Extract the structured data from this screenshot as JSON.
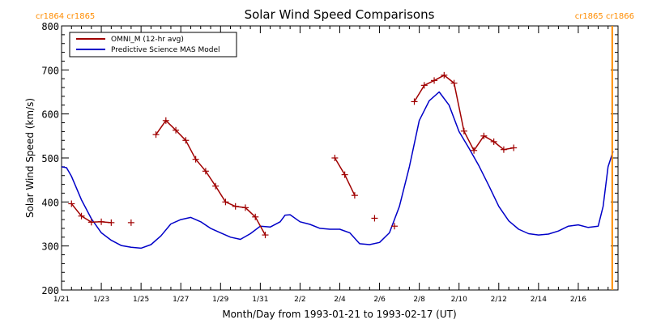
{
  "chart_data": {
    "type": "line",
    "title": "Solar Wind Speed Comparisons",
    "xlabel": "Month/Day from 1993-01-21 to 1993-02-17 (UT)",
    "ylabel": "Solar Wind Speed (km/s)",
    "xlim": [
      "1993-01-21",
      "1993-02-18"
    ],
    "ylim": [
      200,
      800
    ],
    "x_tick_labels": [
      "1/21",
      "1/23",
      "1/25",
      "1/27",
      "1/29",
      "1/31",
      "2/2",
      "2/4",
      "2/6",
      "2/8",
      "2/10",
      "2/12",
      "2/14",
      "2/16"
    ],
    "y_tick_labels": [
      "200",
      "300",
      "400",
      "500",
      "600",
      "700",
      "800"
    ],
    "legend_position": "top-left",
    "carrington_labels": {
      "top_left": "cr1864 cr1865",
      "top_right": "cr1865 cr1866",
      "color": "#ff8c00"
    },
    "boundary_marker": {
      "x": "1993-02-17 17:00",
      "color": "#ff8c00"
    },
    "series": [
      {
        "name": "OMNI_M (12-hr avg)",
        "color": "#a00000",
        "marker": "+",
        "segments": [
          [
            [
              "1993-01-21 12:00",
              396
            ],
            [
              "1993-01-22 00:00",
              368
            ],
            [
              "1993-01-22 12:00",
              354
            ],
            [
              "1993-01-23 00:00",
              355
            ],
            [
              "1993-01-23 12:00",
              353
            ]
          ],
          [
            [
              "1993-01-24 12:00",
              353
            ]
          ],
          [
            [
              "1993-01-25 18:00",
              553
            ],
            [
              "1993-01-26 06:00",
              585
            ],
            [
              "1993-01-26 18:00",
              563
            ],
            [
              "1993-01-27 06:00",
              540
            ],
            [
              "1993-01-27 18:00",
              497
            ],
            [
              "1993-01-28 06:00",
              470
            ],
            [
              "1993-01-28 18:00",
              436
            ],
            [
              "1993-01-29 06:00",
              400
            ],
            [
              "1993-01-29 18:00",
              390
            ],
            [
              "1993-01-30 06:00",
              387
            ],
            [
              "1993-01-30 18:00",
              366
            ],
            [
              "1993-01-31 06:00",
              325
            ]
          ],
          [
            [
              "1993-02-03 18:00",
              500
            ],
            [
              "1993-02-04 06:00",
              462
            ],
            [
              "1993-02-04 18:00",
              415
            ]
          ],
          [
            [
              "1993-02-05 18:00",
              363
            ]
          ],
          [
            [
              "1993-02-06 18:00",
              345
            ]
          ],
          [
            [
              "1993-02-07 18:00",
              628
            ],
            [
              "1993-02-08 06:00",
              665
            ],
            [
              "1993-02-08 18:00",
              676
            ],
            [
              "1993-02-09 06:00",
              688
            ],
            [
              "1993-02-09 18:00",
              670
            ],
            [
              "1993-02-10 06:00",
              561
            ],
            [
              "1993-02-10 18:00",
              517
            ],
            [
              "1993-02-11 06:00",
              550
            ],
            [
              "1993-02-11 18:00",
              537
            ],
            [
              "1993-02-12 06:00",
              519
            ],
            [
              "1993-02-12 18:00",
              523
            ]
          ]
        ]
      },
      {
        "name": "Predictive Science MAS Model",
        "color": "#0000c8",
        "marker": "none",
        "points": [
          [
            "1993-01-21 00:00",
            480
          ],
          [
            "1993-01-21 06:00",
            478
          ],
          [
            "1993-01-21 12:00",
            458
          ],
          [
            "1993-01-22 00:00",
            405
          ],
          [
            "1993-01-22 12:00",
            362
          ],
          [
            "1993-01-23 00:00",
            330
          ],
          [
            "1993-01-23 12:00",
            313
          ],
          [
            "1993-01-24 00:00",
            301
          ],
          [
            "1993-01-24 12:00",
            297
          ],
          [
            "1993-01-25 00:00",
            295
          ],
          [
            "1993-01-25 12:00",
            303
          ],
          [
            "1993-01-26 00:00",
            323
          ],
          [
            "1993-01-26 12:00",
            350
          ],
          [
            "1993-01-27 00:00",
            360
          ],
          [
            "1993-01-27 12:00",
            365
          ],
          [
            "1993-01-28 00:00",
            355
          ],
          [
            "1993-01-28 12:00",
            340
          ],
          [
            "1993-01-29 00:00",
            330
          ],
          [
            "1993-01-29 12:00",
            320
          ],
          [
            "1993-01-30 00:00",
            315
          ],
          [
            "1993-01-30 12:00",
            328
          ],
          [
            "1993-01-31 00:00",
            345
          ],
          [
            "1993-01-31 12:00",
            343
          ],
          [
            "1993-02-01 00:00",
            355
          ],
          [
            "1993-02-01 06:00",
            370
          ],
          [
            "1993-02-01 12:00",
            371
          ],
          [
            "1993-02-02 00:00",
            355
          ],
          [
            "1993-02-02 12:00",
            349
          ],
          [
            "1993-02-03 00:00",
            340
          ],
          [
            "1993-02-03 12:00",
            338
          ],
          [
            "1993-02-04 00:00",
            338
          ],
          [
            "1993-02-04 12:00",
            330
          ],
          [
            "1993-02-05 00:00",
            305
          ],
          [
            "1993-02-05 12:00",
            303
          ],
          [
            "1993-02-06 00:00",
            308
          ],
          [
            "1993-02-06 12:00",
            330
          ],
          [
            "1993-02-07 00:00",
            390
          ],
          [
            "1993-02-07 12:00",
            480
          ],
          [
            "1993-02-08 00:00",
            585
          ],
          [
            "1993-02-08 12:00",
            630
          ],
          [
            "1993-02-09 00:00",
            650
          ],
          [
            "1993-02-09 12:00",
            620
          ],
          [
            "1993-02-10 00:00",
            560
          ],
          [
            "1993-02-10 12:00",
            522
          ],
          [
            "1993-02-11 00:00",
            482
          ],
          [
            "1993-02-11 12:00",
            437
          ],
          [
            "1993-02-12 00:00",
            390
          ],
          [
            "1993-02-12 12:00",
            357
          ],
          [
            "1993-02-13 00:00",
            338
          ],
          [
            "1993-02-13 12:00",
            328
          ],
          [
            "1993-02-14 00:00",
            325
          ],
          [
            "1993-02-14 12:00",
            327
          ],
          [
            "1993-02-15 00:00",
            334
          ],
          [
            "1993-02-15 12:00",
            345
          ],
          [
            "1993-02-16 00:00",
            348
          ],
          [
            "1993-02-16 12:00",
            342
          ],
          [
            "1993-02-17 00:00",
            345
          ],
          [
            "1993-02-17 06:00",
            390
          ],
          [
            "1993-02-17 12:00",
            480
          ],
          [
            "1993-02-17 18:00",
            515
          ]
        ]
      }
    ]
  }
}
